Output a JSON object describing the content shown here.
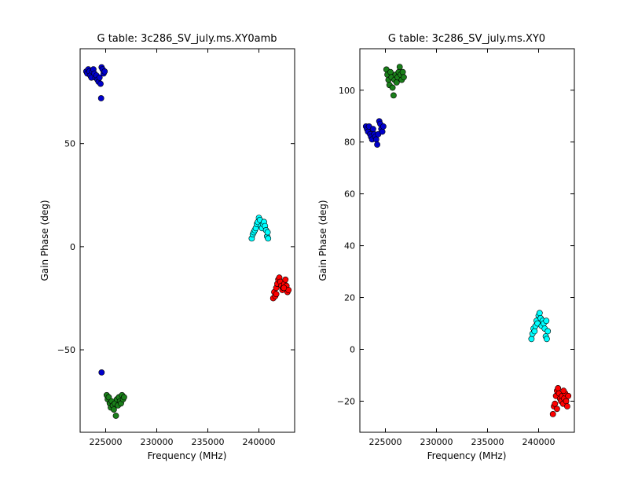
{
  "chart_data": [
    {
      "type": "scatter",
      "title": "G table: 3c286_SV_july.ms.XY0amb",
      "xlabel": "Frequency (MHz)",
      "ylabel": "Gain Phase (deg)",
      "xlim": [
        222500,
        243500
      ],
      "ylim": [
        -90,
        96
      ],
      "xticks": [
        225000,
        230000,
        235000,
        240000
      ],
      "yticks": [
        -50,
        0,
        50
      ],
      "ytick_labels": [
        "−50",
        "0",
        "50"
      ],
      "series": [
        {
          "color": "#0000cc",
          "points": [
            [
              223100,
              85
            ],
            [
              223200,
              84
            ],
            [
              223300,
              86
            ],
            [
              223400,
              85
            ],
            [
              223500,
              83
            ],
            [
              223600,
              82
            ],
            [
              223700,
              85
            ],
            [
              223800,
              86
            ],
            [
              223900,
              84
            ],
            [
              224000,
              82
            ],
            [
              224100,
              83
            ],
            [
              224200,
              81
            ],
            [
              224300,
              80
            ],
            [
              224400,
              82
            ],
            [
              224500,
              79
            ],
            [
              224600,
              87
            ],
            [
              224700,
              86
            ],
            [
              224800,
              84
            ],
            [
              224900,
              85
            ],
            [
              224550,
              72
            ],
            [
              224600,
              -61
            ]
          ]
        },
        {
          "color": "#1a7f1a",
          "points": [
            [
              225100,
              -72
            ],
            [
              225200,
              -74
            ],
            [
              225300,
              -73
            ],
            [
              225400,
              -76
            ],
            [
              225500,
              -78
            ],
            [
              225600,
              -75
            ],
            [
              225700,
              -77
            ],
            [
              225800,
              -79
            ],
            [
              225900,
              -76
            ],
            [
              226000,
              -82
            ],
            [
              226100,
              -74
            ],
            [
              226200,
              -77
            ],
            [
              226300,
              -73
            ],
            [
              226400,
              -75
            ],
            [
              226500,
              -76
            ],
            [
              226600,
              -72
            ],
            [
              226700,
              -74
            ],
            [
              226800,
              -73
            ]
          ]
        },
        {
          "color": "#00ffff",
          "points": [
            [
              239300,
              4
            ],
            [
              239400,
              6
            ],
            [
              239500,
              7
            ],
            [
              239600,
              8
            ],
            [
              239700,
              9
            ],
            [
              239800,
              11
            ],
            [
              239900,
              12
            ],
            [
              240000,
              14
            ],
            [
              240100,
              13
            ],
            [
              240200,
              10
            ],
            [
              240300,
              9
            ],
            [
              240400,
              11
            ],
            [
              240500,
              12
            ],
            [
              240600,
              10
            ],
            [
              240700,
              8
            ],
            [
              240800,
              5
            ],
            [
              240900,
              4
            ],
            [
              240850,
              7
            ]
          ]
        },
        {
          "color": "#ff0000",
          "points": [
            [
              241400,
              -25
            ],
            [
              241500,
              -22
            ],
            [
              241600,
              -24
            ],
            [
              241700,
              -20
            ],
            [
              241800,
              -18
            ],
            [
              241900,
              -16
            ],
            [
              242000,
              -15
            ],
            [
              242100,
              -17
            ],
            [
              242200,
              -19
            ],
            [
              242300,
              -21
            ],
            [
              242400,
              -20
            ],
            [
              242500,
              -18
            ],
            [
              242600,
              -16
            ],
            [
              242700,
              -19
            ],
            [
              242800,
              -22
            ],
            [
              242900,
              -21
            ],
            [
              242450,
              -20
            ],
            [
              241700,
              -23
            ]
          ]
        }
      ]
    },
    {
      "type": "scatter",
      "title": "G table: 3c286_SV_july.ms.XY0",
      "xlabel": "Frequency (MHz)",
      "ylabel": "Gain Phase (deg)",
      "xlim": [
        222500,
        243500
      ],
      "ylim": [
        -32,
        116
      ],
      "xticks": [
        225000,
        230000,
        235000,
        240000
      ],
      "yticks": [
        -20,
        0,
        20,
        40,
        60,
        80,
        100
      ],
      "ytick_labels": [
        "−20",
        "0",
        "20",
        "40",
        "60",
        "80",
        "100"
      ],
      "series": [
        {
          "color": "#0000cc",
          "points": [
            [
              223100,
              86
            ],
            [
              223200,
              85
            ],
            [
              223300,
              84
            ],
            [
              223400,
              86
            ],
            [
              223500,
              83
            ],
            [
              223600,
              82
            ],
            [
              223700,
              81
            ],
            [
              223800,
              85
            ],
            [
              223900,
              83
            ],
            [
              224000,
              82
            ],
            [
              224100,
              81
            ],
            [
              224200,
              79
            ],
            [
              224300,
              83
            ],
            [
              224400,
              88
            ],
            [
              224500,
              87
            ],
            [
              224600,
              85
            ],
            [
              224700,
              84
            ],
            [
              224800,
              86
            ]
          ]
        },
        {
          "color": "#1a7f1a",
          "points": [
            [
              225100,
              108
            ],
            [
              225200,
              106
            ],
            [
              225300,
              104
            ],
            [
              225400,
              102
            ],
            [
              225500,
              107
            ],
            [
              225600,
              105
            ],
            [
              225700,
              101
            ],
            [
              225800,
              98
            ],
            [
              225900,
              104
            ],
            [
              226000,
              106
            ],
            [
              226100,
              103
            ],
            [
              226200,
              105
            ],
            [
              226300,
              107
            ],
            [
              226400,
              109
            ],
            [
              226500,
              106
            ],
            [
              226600,
              104
            ],
            [
              226700,
              107
            ],
            [
              226800,
              105
            ]
          ]
        },
        {
          "color": "#00ffff",
          "points": [
            [
              239300,
              4
            ],
            [
              239400,
              6
            ],
            [
              239500,
              8
            ],
            [
              239600,
              7
            ],
            [
              239700,
              9
            ],
            [
              239800,
              11
            ],
            [
              239900,
              10
            ],
            [
              240000,
              13
            ],
            [
              240100,
              14
            ],
            [
              240200,
              12
            ],
            [
              240300,
              9
            ],
            [
              240400,
              11
            ],
            [
              240500,
              10
            ],
            [
              240600,
              8
            ],
            [
              240700,
              5
            ],
            [
              240800,
              4
            ],
            [
              240900,
              7
            ],
            [
              240750,
              11
            ]
          ]
        },
        {
          "color": "#ff0000",
          "points": [
            [
              241400,
              -25
            ],
            [
              241500,
              -22
            ],
            [
              241600,
              -21
            ],
            [
              241700,
              -18
            ],
            [
              241800,
              -16
            ],
            [
              241900,
              -15
            ],
            [
              242000,
              -17
            ],
            [
              242100,
              -19
            ],
            [
              242200,
              -20
            ],
            [
              242300,
              -18
            ],
            [
              242400,
              -21
            ],
            [
              242500,
              -19
            ],
            [
              242600,
              -17
            ],
            [
              242700,
              -20
            ],
            [
              242800,
              -22
            ],
            [
              242900,
              -18
            ],
            [
              242450,
              -16
            ],
            [
              241800,
              -23
            ]
          ]
        }
      ]
    }
  ]
}
